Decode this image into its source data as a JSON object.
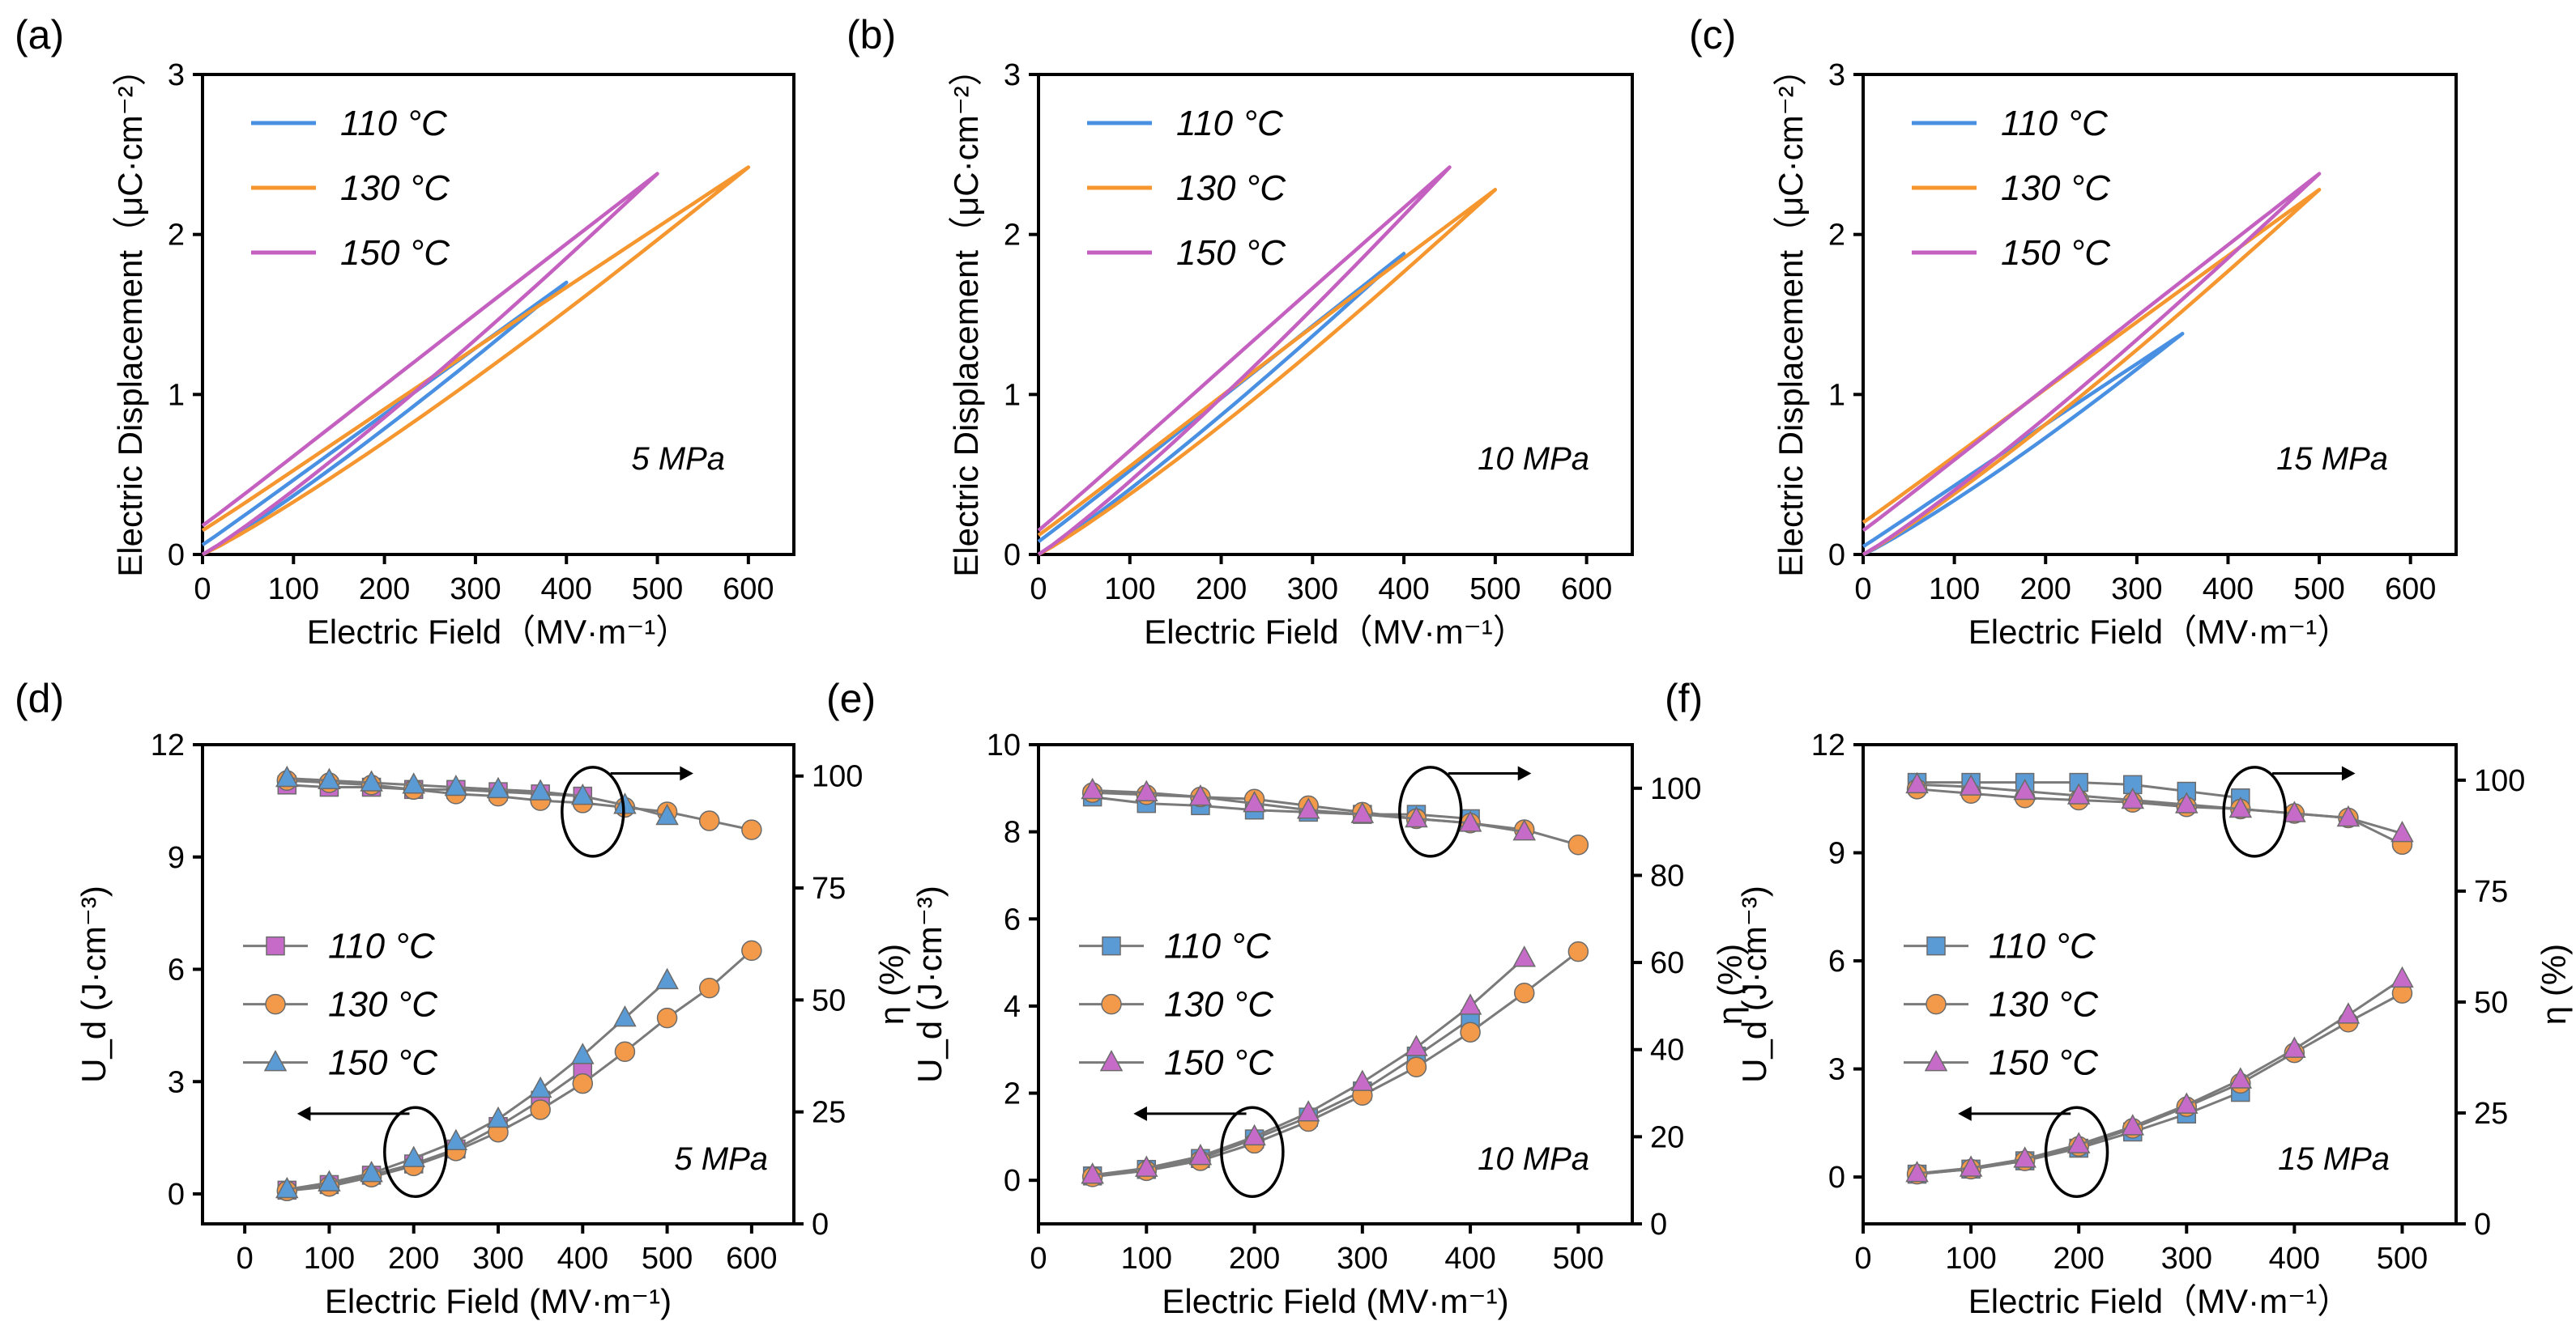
{
  "colors": {
    "blue": "#4a90e2",
    "orange": "#f5962f",
    "purple": "#c460c0",
    "line_gray": "#7a7a7a",
    "marker_blue": "#5b9bd5",
    "marker_orange": "#f39a4a",
    "marker_purple": "#c66cc8"
  },
  "chart_data": [
    {
      "panel": "(a)",
      "type": "line",
      "pressure": "5 MPa",
      "xlabel": "Electric Field（MV·m⁻¹）",
      "ylabel": "Electric Displacement（μC·cm⁻²）",
      "xlim": [
        0,
        650
      ],
      "ylim": [
        0,
        3
      ],
      "xticks": [
        "0",
        "100",
        "200",
        "300",
        "400",
        "500",
        "600"
      ],
      "yticks": [
        "0",
        "1",
        "2",
        "3"
      ],
      "series": [
        {
          "name": "110 °C",
          "color": "blue",
          "emax": 400,
          "dmax": 1.7,
          "d0_upper": 0.06,
          "width": 0.03
        },
        {
          "name": "130 °C",
          "color": "orange",
          "emax": 600,
          "dmax": 2.42,
          "d0_upper": 0.15,
          "width": 0.07
        },
        {
          "name": "150 °C",
          "color": "purple",
          "emax": 500,
          "dmax": 2.38,
          "d0_upper": 0.18,
          "width": 0.05
        }
      ],
      "legend": [
        "110 °C",
        "130 °C",
        "150 °C"
      ]
    },
    {
      "panel": "(b)",
      "type": "line",
      "pressure": "10 MPa",
      "xlabel": "Electric Field（MV·m⁻¹）",
      "ylabel": "Electric Displacement（μC·cm⁻²）",
      "xlim": [
        0,
        650
      ],
      "ylim": [
        0,
        3
      ],
      "xticks": [
        "0",
        "100",
        "200",
        "300",
        "400",
        "500",
        "600"
      ],
      "yticks": [
        "0",
        "1",
        "2",
        "3"
      ],
      "series": [
        {
          "name": "110 °C",
          "color": "blue",
          "emax": 400,
          "dmax": 1.88,
          "d0_upper": 0.08,
          "width": 0.03
        },
        {
          "name": "130 °C",
          "color": "orange",
          "emax": 500,
          "dmax": 2.28,
          "d0_upper": 0.12,
          "width": 0.07
        },
        {
          "name": "150 °C",
          "color": "purple",
          "emax": 450,
          "dmax": 2.42,
          "d0_upper": 0.15,
          "width": 0.05
        }
      ],
      "legend": [
        "110 °C",
        "130 °C",
        "150 °C"
      ]
    },
    {
      "panel": "(c)",
      "type": "line",
      "pressure": "15 MPa",
      "xlabel": "Electric Field（MV·m⁻¹）",
      "ylabel": "Electric Displacement（μC·cm⁻²）",
      "xlim": [
        0,
        650
      ],
      "ylim": [
        0,
        3
      ],
      "xticks": [
        "0",
        "100",
        "200",
        "300",
        "400",
        "500",
        "600"
      ],
      "yticks": [
        "0",
        "1",
        "2",
        "3"
      ],
      "series": [
        {
          "name": "110 °C",
          "color": "blue",
          "emax": 350,
          "dmax": 1.38,
          "d0_upper": 0.05,
          "width": 0.04
        },
        {
          "name": "130 °C",
          "color": "orange",
          "emax": 500,
          "dmax": 2.28,
          "d0_upper": 0.2,
          "width": 0.06
        },
        {
          "name": "150 °C",
          "color": "purple",
          "emax": 500,
          "dmax": 2.38,
          "d0_upper": 0.15,
          "width": 0.05
        }
      ],
      "legend": [
        "110 °C",
        "130 °C",
        "150 °C"
      ]
    },
    {
      "panel": "(d)",
      "type": "line",
      "pressure": "5 MPa",
      "xlabel": "Electric Field (MV·m⁻¹)",
      "ylabel_left": "U_d (J·cm⁻³)",
      "ylabel_right": "η (%)",
      "xlim": [
        -50,
        650
      ],
      "ylim_left": [
        -0.8,
        12
      ],
      "ylim_right": [
        0,
        107
      ],
      "xticks": [
        "0",
        "100",
        "200",
        "300",
        "400",
        "500",
        "600"
      ],
      "yticks_left": [
        "0",
        "3",
        "6",
        "9",
        "12"
      ],
      "yticks_right": [
        "0",
        "25",
        "50",
        "75",
        "100"
      ],
      "series": [
        {
          "name": "110 °C",
          "marker": "square",
          "color": "marker_purple",
          "ud_x": [
            50,
            100,
            150,
            200,
            250,
            300,
            350,
            400
          ],
          "ud": [
            0.1,
            0.25,
            0.5,
            0.8,
            1.2,
            1.8,
            2.5,
            3.3
          ],
          "eta_x": [
            50,
            100,
            150,
            200,
            250,
            300,
            350,
            400
          ],
          "eta": [
            98,
            97.5,
            97.5,
            97,
            97,
            96.5,
            96,
            95.5
          ]
        },
        {
          "name": "130 °C",
          "marker": "circle",
          "color": "marker_orange",
          "ud_x": [
            50,
            100,
            150,
            200,
            250,
            300,
            350,
            400,
            450,
            500,
            550,
            600
          ],
          "ud": [
            0.08,
            0.2,
            0.45,
            0.75,
            1.15,
            1.65,
            2.25,
            2.95,
            3.8,
            4.7,
            5.5,
            6.5
          ],
          "eta_x": [
            50,
            100,
            150,
            200,
            250,
            300,
            350,
            400,
            450,
            500,
            550,
            600
          ],
          "eta": [
            99,
            98.5,
            98,
            97,
            96,
            95.5,
            94.5,
            94,
            93,
            92,
            90,
            88
          ]
        },
        {
          "name": "150 °C",
          "marker": "triangle",
          "color": "marker_blue",
          "ud_x": [
            50,
            100,
            150,
            200,
            250,
            300,
            350,
            400,
            450,
            500
          ],
          "ud": [
            0.12,
            0.3,
            0.55,
            0.95,
            1.4,
            2.0,
            2.8,
            3.7,
            4.7,
            5.7
          ],
          "eta_x": [
            50,
            100,
            150,
            200,
            250,
            300,
            350,
            400,
            450,
            500
          ],
          "eta": [
            99.5,
            99,
            98.5,
            98,
            97.5,
            97,
            96.5,
            95.5,
            93.5,
            91
          ]
        }
      ],
      "legend": [
        "110 °C",
        "130 °C",
        "150 °C"
      ]
    },
    {
      "panel": "(e)",
      "type": "line",
      "pressure": "10 MPa",
      "xlabel": "Electric Field (MV·m⁻¹)",
      "ylabel_left": "U_d (J·cm⁻³)",
      "ylabel_right": "η (%)",
      "xlim": [
        0,
        550
      ],
      "ylim_left": [
        -1,
        10
      ],
      "ylim_right": [
        0,
        110
      ],
      "xticks": [
        "0",
        "100",
        "200",
        "300",
        "400",
        "500"
      ],
      "yticks_left": [
        "0",
        "2",
        "4",
        "6",
        "8",
        "10"
      ],
      "yticks_right": [
        "0",
        "20",
        "40",
        "60",
        "80",
        "100"
      ],
      "series": [
        {
          "name": "110 °C",
          "marker": "square",
          "color": "marker_blue",
          "ud_x": [
            50,
            100,
            150,
            200,
            250,
            300,
            350,
            400
          ],
          "ud": [
            0.1,
            0.25,
            0.5,
            0.95,
            1.45,
            2.05,
            2.85,
            3.7
          ],
          "eta_x": [
            50,
            100,
            150,
            200,
            250,
            300,
            350,
            400
          ],
          "eta": [
            98,
            96.5,
            96,
            95,
            94.5,
            94,
            94,
            93
          ]
        },
        {
          "name": "130 °C",
          "marker": "circle",
          "color": "marker_orange",
          "ud_x": [
            50,
            100,
            150,
            200,
            250,
            300,
            350,
            400,
            450,
            500
          ],
          "ud": [
            0.08,
            0.22,
            0.45,
            0.85,
            1.35,
            1.95,
            2.6,
            3.4,
            4.3,
            5.25
          ],
          "eta_x": [
            50,
            100,
            150,
            200,
            250,
            300,
            350,
            400,
            450,
            500
          ],
          "eta": [
            99,
            98.5,
            98,
            97.5,
            96,
            94.5,
            93,
            92,
            90.5,
            87
          ]
        },
        {
          "name": "150 °C",
          "marker": "triangle",
          "color": "marker_purple",
          "ud_x": [
            50,
            100,
            150,
            200,
            250,
            300,
            350,
            400,
            450
          ],
          "ud": [
            0.12,
            0.28,
            0.55,
            1.0,
            1.55,
            2.25,
            3.05,
            4.0,
            5.1
          ],
          "eta_x": [
            50,
            100,
            150,
            200,
            250,
            300,
            350,
            400,
            450
          ],
          "eta": [
            99.5,
            99,
            98,
            96.5,
            95,
            94,
            93,
            92,
            90
          ]
        }
      ],
      "legend": [
        "110 °C",
        "130 °C",
        "150 °C"
      ]
    },
    {
      "panel": "(f)",
      "type": "line",
      "pressure": "15 MPa",
      "xlabel": "Electric Field（MV·m⁻¹）",
      "ylabel_left": "U_d (J·cm⁻³)",
      "ylabel_right": "η (%)",
      "xlim": [
        0,
        550
      ],
      "ylim_left": [
        -1.3,
        12
      ],
      "ylim_right": [
        0,
        108
      ],
      "xticks": [
        "0",
        "100",
        "200",
        "300",
        "400",
        "500"
      ],
      "yticks_left": [
        "0",
        "3",
        "6",
        "9",
        "12"
      ],
      "yticks_right": [
        "0",
        "25",
        "50",
        "75",
        "100"
      ],
      "series": [
        {
          "name": "110 °C",
          "marker": "square",
          "color": "marker_blue",
          "ud_x": [
            50,
            100,
            150,
            200,
            250,
            300,
            350
          ],
          "ud": [
            0.08,
            0.22,
            0.45,
            0.8,
            1.25,
            1.75,
            2.35
          ],
          "eta_x": [
            50,
            100,
            150,
            200,
            250,
            300,
            350
          ],
          "eta": [
            99.5,
            99.5,
            99.5,
            99.5,
            99,
            97.5,
            96
          ]
        },
        {
          "name": "130 °C",
          "marker": "circle",
          "color": "marker_orange",
          "ud_x": [
            50,
            100,
            150,
            200,
            250,
            300,
            350,
            400,
            450,
            500
          ],
          "ud": [
            0.08,
            0.22,
            0.45,
            0.85,
            1.35,
            1.95,
            2.6,
            3.45,
            4.3,
            5.1
          ],
          "eta_x": [
            50,
            100,
            150,
            200,
            250,
            300,
            350,
            400,
            450,
            500
          ],
          "eta": [
            98,
            97,
            96,
            95.5,
            95,
            94,
            93.5,
            92.5,
            91.5,
            85.5
          ]
        },
        {
          "name": "150 °C",
          "marker": "triangle",
          "color": "marker_purple",
          "ud_x": [
            50,
            100,
            150,
            200,
            250,
            300,
            350,
            400,
            450,
            500
          ],
          "ud": [
            0.1,
            0.25,
            0.5,
            0.9,
            1.4,
            2.0,
            2.7,
            3.55,
            4.5,
            5.5
          ],
          "eta_x": [
            50,
            100,
            150,
            200,
            250,
            300,
            350,
            400,
            450,
            500
          ],
          "eta": [
            99,
            98.5,
            97.5,
            96.5,
            95.5,
            94.5,
            93.5,
            92.5,
            91.5,
            88
          ]
        }
      ],
      "legend": [
        "110 °C",
        "130 °C",
        "150 °C"
      ]
    }
  ]
}
